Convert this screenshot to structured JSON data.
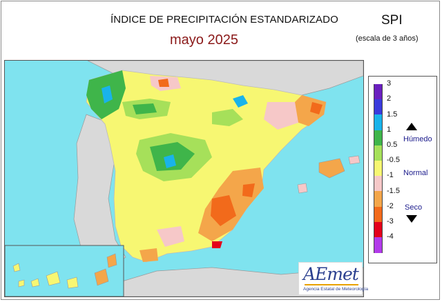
{
  "header": {
    "title": "ÍNDICE DE PRECIPITACIÓN ESTANDARIZADO",
    "subtitle": "mayo  2025",
    "index_name": "SPI",
    "scale_note": "(escala de 3 años)"
  },
  "legend": {
    "labels": [
      "3",
      "2",
      "1.5",
      "1",
      "0.5",
      "-0.5",
      "-1",
      "-1.5",
      "-2",
      "-3",
      "-4"
    ],
    "humid_label": "Húmedo",
    "normal_label": "Normal",
    "dry_label": "Seco",
    "colors": [
      "#6a1fbf",
      "#3a3adc",
      "#19b3ea",
      "#3fb54a",
      "#a6e05a",
      "#f7f772",
      "#f6c8c8",
      "#f4a64a",
      "#f26a1b",
      "#e3001b",
      "#b23bea"
    ]
  },
  "map": {
    "sea_color": "#7fe3ef",
    "land_other_color": "#d9d9d9",
    "icons": [
      "humid-arrow-icon",
      "dry-arrow-icon"
    ]
  },
  "logo": {
    "name": "AEmet",
    "tagline": "Agencia Estatal de Meteorología"
  }
}
